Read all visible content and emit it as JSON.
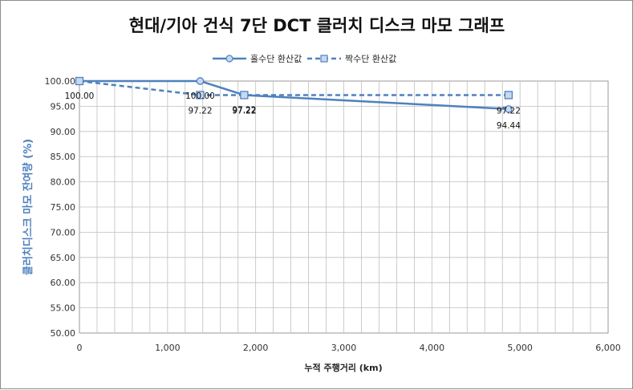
{
  "chart_data": {
    "type": "line",
    "title": "현대/기아 건식 7단 DCT 클러치 디스크 마모 그래프",
    "xlabel": "누적 주행거리 (km)",
    "ylabel": "클러치디스크 마모 잔여량 (%)",
    "xlim": [
      0,
      6000
    ],
    "ylim": [
      50,
      100
    ],
    "x_ticks": [
      "0",
      "1,000",
      "2,000",
      "3,000",
      "4,000",
      "5,000",
      "6,000"
    ],
    "y_ticks": [
      "50.00",
      "55.00",
      "60.00",
      "65.00",
      "70.00",
      "75.00",
      "80.00",
      "85.00",
      "90.00",
      "95.00",
      "100.00"
    ],
    "grid": true,
    "legend_position": "top",
    "series": [
      {
        "name": "홀수단 환산값",
        "style": "solid",
        "marker": "circle",
        "color": "#4f81bd",
        "points": [
          {
            "x": 0,
            "y": 100.0,
            "label": "100.00"
          },
          {
            "x": 1370,
            "y": 100.0,
            "label": "100.00"
          },
          {
            "x": 1870,
            "y": 97.22,
            "label": "97.22"
          },
          {
            "x": 4870,
            "y": 94.44,
            "label": "94.44"
          }
        ]
      },
      {
        "name": "짝수단 환산값",
        "style": "dashed",
        "marker": "square",
        "color": "#4f81bd",
        "points": [
          {
            "x": 0,
            "y": 100.0,
            "label": ""
          },
          {
            "x": 1370,
            "y": 97.22,
            "label": "97.22"
          },
          {
            "x": 1870,
            "y": 97.22,
            "label": "97.22"
          },
          {
            "x": 4870,
            "y": 97.22,
            "label": "97.22"
          }
        ]
      }
    ]
  }
}
